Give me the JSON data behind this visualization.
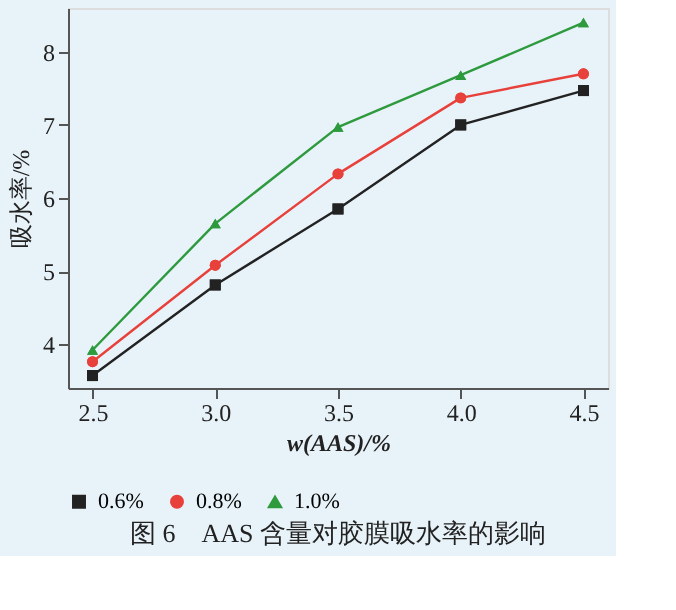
{
  "chart_data": {
    "type": "line",
    "title": "图 6　AAS 含量对胶膜吸水率的影响",
    "xlabel": "w(AAS)/%",
    "ylabel": "吸水率/%",
    "x": [
      2.5,
      3.0,
      3.5,
      4.0,
      4.5
    ],
    "series": [
      {
        "name": "0.6%",
        "color": "#222222",
        "marker": "square",
        "values": [
          3.57,
          4.81,
          5.85,
          7.0,
          7.47
        ]
      },
      {
        "name": "0.8%",
        "color": "#e8403a",
        "marker": "circle",
        "values": [
          3.76,
          5.08,
          6.33,
          7.37,
          7.7
        ]
      },
      {
        "name": "1.0%",
        "color": "#2e9a3e",
        "marker": "triangle",
        "values": [
          3.92,
          5.65,
          6.97,
          7.68,
          8.4
        ]
      }
    ],
    "xlim": [
      2.4,
      4.6
    ],
    "ylim": [
      3.4,
      8.6
    ],
    "xticks": [
      2.5,
      {
        "value": 3,
        "label": "3.0"
      },
      3.5,
      {
        "value": 4,
        "label": "4.0"
      },
      4.5
    ],
    "yticks": [
      4,
      5,
      6,
      7,
      8
    ],
    "grid": false,
    "legend": "bottom",
    "line_style": "solid"
  }
}
